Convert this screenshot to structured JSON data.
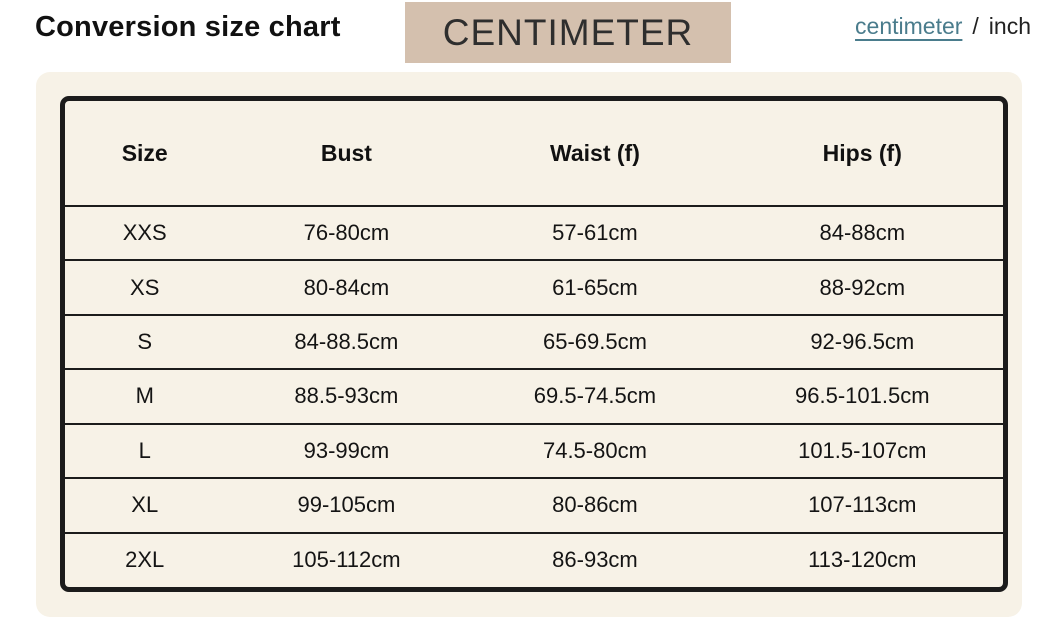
{
  "page": {
    "title": "Conversion size chart",
    "unit_badge": "CENTIMETER"
  },
  "unit_toggle": {
    "centimeter_label": "centimeter",
    "separator": "/",
    "inch_label": "inch",
    "active_unit": "centimeter"
  },
  "colors": {
    "page_background": "#ffffff",
    "panel_background": "#f7f2e7",
    "badge_background": "#d4c0ae",
    "table_border": "#1c1c1c",
    "link_active": "#4a7c8c",
    "text": "#1d1d1d"
  },
  "size_table": {
    "headers": [
      "Size",
      "Bust",
      "Waist (f)",
      "Hips (f)"
    ],
    "rows": [
      [
        "XXS",
        "76-80cm",
        "57-61cm",
        "84-88cm"
      ],
      [
        "XS",
        "80-84cm",
        "61-65cm",
        "88-92cm"
      ],
      [
        "S",
        "84-88.5cm",
        "65-69.5cm",
        "92-96.5cm"
      ],
      [
        "M",
        "88.5-93cm",
        "69.5-74.5cm",
        "96.5-101.5cm"
      ],
      [
        "L",
        "93-99cm",
        "74.5-80cm",
        "101.5-107cm"
      ],
      [
        "XL",
        "99-105cm",
        "80-86cm",
        "107-113cm"
      ],
      [
        "2XL",
        "105-112cm",
        "86-93cm",
        "113-120cm"
      ]
    ]
  }
}
